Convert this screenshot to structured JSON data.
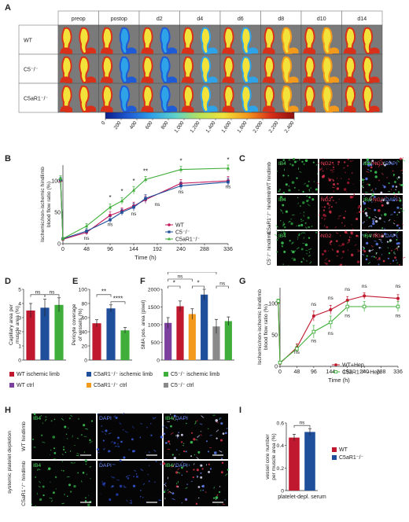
{
  "panels": {
    "A": "A",
    "B": "B",
    "C": "C",
    "D": "D",
    "E": "E",
    "F": "F",
    "G": "G",
    "H": "H",
    "I": "I"
  },
  "panelA": {
    "timepoints": [
      "preop",
      "postop",
      "d2",
      "d4",
      "d6",
      "d8",
      "d10",
      "d14"
    ],
    "rows": [
      "WT",
      "C5⁻/⁻",
      "C5aR1⁻/⁻"
    ],
    "colorbar_ticks": [
      "0",
      "200",
      "400",
      "600",
      "800",
      "1,000",
      "1,200",
      "1,400",
      "1,600",
      "1,800",
      "2,000",
      "2,200",
      "2,400"
    ],
    "colorbar_colors": [
      "#0b1f8a",
      "#1f5bd6",
      "#2fa3e8",
      "#5fd3c8",
      "#b8e35a",
      "#f2e23a",
      "#f39a1d",
      "#d9301a",
      "#8e1010"
    ]
  },
  "chart_data": [
    {
      "panel": "B",
      "type": "line",
      "xlabel": "Time (h)",
      "ylabel": "Ischemic/non-ischemic hindlimb blood flow ratio (%)",
      "x": [
        0,
        48,
        96,
        144,
        192,
        240,
        288,
        336
      ],
      "xlim": [
        0,
        336
      ],
      "ylim": [
        0,
        125
      ],
      "yticks": [
        0,
        50,
        100
      ],
      "xticks": [
        0,
        48,
        96,
        144,
        192,
        240,
        288,
        336
      ],
      "series": [
        {
          "name": "WT",
          "color": "#c2185b",
          "marker": "circle",
          "x": [
            -5,
            0,
            48,
            96,
            120,
            144,
            168,
            240,
            336
          ],
          "values": [
            100,
            7,
            18,
            45,
            52,
            60,
            70,
            96,
            100
          ],
          "err": [
            4,
            2,
            4,
            6,
            5,
            6,
            6,
            6,
            7
          ]
        },
        {
          "name": "C5⁻/⁻",
          "color": "#1f4e9a",
          "marker": "square",
          "x": [
            -5,
            0,
            48,
            96,
            120,
            144,
            168,
            240,
            336
          ],
          "values": [
            102,
            8,
            20,
            38,
            50,
            58,
            72,
            92,
            98
          ],
          "err": [
            4,
            2,
            4,
            5,
            5,
            6,
            6,
            6,
            6
          ]
        },
        {
          "name": "C5aR1⁻/⁻",
          "color": "#3fae3a",
          "marker": "triangle",
          "x": [
            -5,
            0,
            48,
            96,
            120,
            144,
            168,
            240,
            336
          ],
          "values": [
            104,
            8,
            28,
            58,
            68,
            85,
            102,
            118,
            120
          ],
          "err": [
            4,
            2,
            4,
            5,
            5,
            6,
            5,
            5,
            5
          ]
        }
      ],
      "annotations": [
        {
          "x": 96,
          "y": 70,
          "text": "*"
        },
        {
          "x": 120,
          "y": 80,
          "text": "*"
        },
        {
          "x": 144,
          "y": 96,
          "text": "*"
        },
        {
          "x": 168,
          "y": 112,
          "text": "**"
        },
        {
          "x": 240,
          "y": 128,
          "text": "*"
        },
        {
          "x": 336,
          "y": 130,
          "text": "*"
        },
        {
          "x": 48,
          "y": 6,
          "text": "ns"
        },
        {
          "x": 96,
          "y": 28,
          "text": "ns"
        },
        {
          "x": 144,
          "y": 45,
          "text": "ns"
        },
        {
          "x": 192,
          "y": 60,
          "text": "ns"
        },
        {
          "x": 240,
          "y": 80,
          "text": "ns"
        },
        {
          "x": 336,
          "y": 88,
          "text": "ns"
        }
      ]
    },
    {
      "panel": "D",
      "type": "bar",
      "ylabel": "Capillary area per muscle area (%)",
      "categories": [
        "WT ischemic limb",
        "C5aR1⁻/⁻ ischemic limb",
        "C5⁻/⁻ ischemic limb"
      ],
      "values": [
        3.5,
        3.7,
        3.9
      ],
      "err": [
        0.5,
        0.6,
        0.5
      ],
      "colors": [
        "#c0182e",
        "#1f4e9a",
        "#3fae3a"
      ],
      "ylim": [
        0,
        5
      ],
      "yticks": [
        0,
        1,
        2,
        3,
        4,
        5
      ],
      "brackets": [
        {
          "from": 0,
          "to": 1,
          "text": "ns"
        },
        {
          "from": 1,
          "to": 2,
          "text": "ns"
        }
      ]
    },
    {
      "panel": "E",
      "type": "bar",
      "ylabel": "Pericyte coverage of vessels (%)",
      "categories": [
        "WT ischemic limb",
        "C5aR1⁻/⁻ ischemic limb",
        "C5⁻/⁻ ischemic limb"
      ],
      "values": [
        52,
        73,
        42
      ],
      "err": [
        5,
        5,
        4
      ],
      "colors": [
        "#c0182e",
        "#1f4e9a",
        "#3fae3a"
      ],
      "ylim": [
        0,
        100
      ],
      "yticks": [
        0,
        20,
        40,
        60,
        80,
        100
      ],
      "brackets": [
        {
          "from": 0,
          "to": 1,
          "text": "**",
          "level": 2
        },
        {
          "from": 1,
          "to": 2,
          "text": "****",
          "level": 1
        }
      ]
    },
    {
      "panel": "F",
      "type": "bar",
      "ylabel": "SMA pos. area (pixel)",
      "categories": [
        "WT ctrl",
        "WT ischemic limb",
        "C5aR1⁻/⁻ ctrl",
        "C5aR1⁻/⁻ ischemic limb",
        "C5⁻/⁻ ctrl",
        "C5⁻/⁻ ischemic limb"
      ],
      "values": [
        1050,
        1520,
        1300,
        1850,
        950,
        1100
      ],
      "err": [
        150,
        150,
        150,
        150,
        200,
        120
      ],
      "colors": [
        "#7b3f9e",
        "#c0182e",
        "#f39a1d",
        "#1f4e9a",
        "#8a8a8a",
        "#3fae3a"
      ],
      "ylim": [
        0,
        2000
      ],
      "yticks": [
        0,
        500,
        1000,
        1500,
        2000
      ],
      "brackets": [
        {
          "from": 0,
          "to": 1,
          "text": "*",
          "level": 1
        },
        {
          "from": 2,
          "to": 3,
          "text": "*",
          "level": 1
        },
        {
          "from": 0,
          "to": 2,
          "text": "ns",
          "level": 2
        },
        {
          "from": 4,
          "to": 5,
          "text": "ns",
          "level": 1
        },
        {
          "from": 0,
          "to": 4,
          "text": "ns",
          "level": 3
        }
      ]
    },
    {
      "panel": "G",
      "type": "line",
      "xlabel": "Time (h)",
      "ylabel": "Ischemic/non-ischemic hindlimb blood flow ratio (%)",
      "xlim": [
        0,
        336
      ],
      "ylim": [
        0,
        125
      ],
      "yticks": [
        0,
        50,
        100
      ],
      "xticks": [
        0,
        48,
        96,
        144,
        192,
        240,
        288,
        336
      ],
      "series": [
        {
          "name": "WT+Hep.",
          "color": "#c0182e",
          "marker": "circle",
          "x": [
            -5,
            0,
            48,
            96,
            144,
            192,
            240,
            336
          ],
          "values": [
            103,
            5,
            30,
            80,
            90,
            105,
            112,
            108
          ],
          "err": [
            3,
            2,
            6,
            8,
            7,
            6,
            5,
            6
          ]
        },
        {
          "name": "C5aR1⁻/⁻+Hep.",
          "color": "#3fae3a",
          "marker": "square-open",
          "x": [
            -5,
            0,
            48,
            96,
            144,
            192,
            240,
            336
          ],
          "values": [
            104,
            6,
            28,
            55,
            70,
            95,
            95,
            95
          ],
          "err": [
            3,
            2,
            6,
            10,
            10,
            8,
            8,
            8
          ]
        }
      ],
      "annotations": [
        {
          "x": 48,
          "y": 20,
          "text": "ns"
        },
        {
          "x": 96,
          "y": 96,
          "text": "ns"
        },
        {
          "x": 96,
          "y": 38,
          "text": "ns"
        },
        {
          "x": 144,
          "y": 106,
          "text": "ns"
        },
        {
          "x": 144,
          "y": 50,
          "text": "ns"
        },
        {
          "x": 192,
          "y": 120,
          "text": "ns"
        },
        {
          "x": 192,
          "y": 78,
          "text": "ns"
        },
        {
          "x": 240,
          "y": 125,
          "text": "ns"
        },
        {
          "x": 336,
          "y": 125,
          "text": "ns"
        },
        {
          "x": 336,
          "y": 78,
          "text": "ns"
        }
      ]
    },
    {
      "panel": "I",
      "type": "bar",
      "ylabel": "vessel core number per muscle area (%)",
      "xlabel": "platelet-depl. serum",
      "categories": [
        "WT",
        "C5aR1⁻/⁻"
      ],
      "values": [
        0.47,
        0.52
      ],
      "err": [
        0.03,
        0.03
      ],
      "colors": [
        "#c0182e",
        "#1f4e9a"
      ],
      "ylim": [
        0,
        0.6
      ],
      "yticks": [
        0.0,
        0.2,
        0.4,
        0.6
      ],
      "brackets": [
        {
          "from": 0,
          "to": 1,
          "text": "ns"
        }
      ]
    }
  ],
  "panelC": {
    "rows": [
      "WT hindlimb",
      "C5aR1⁻/⁻ hindlimb",
      "C5⁻/⁻ hindlimb"
    ],
    "col1": "IB4",
    "col2": "NG2",
    "col3a": "IB4",
    "col3b": "NG2",
    "col3c": "DAPI"
  },
  "legendDEF": {
    "row1": [
      {
        "label": "WT ischemic limb",
        "color": "#c0182e"
      },
      {
        "label": "C5aR1⁻/⁻ ischemic limb",
        "color": "#1f4e9a"
      },
      {
        "label": "C5⁻/⁻ ischemic limb",
        "color": "#3fae3a"
      }
    ],
    "row2": [
      {
        "label": "WT ctrl",
        "color": "#7b3f9e"
      },
      {
        "label": "C5aR1⁻/⁻ ctrl",
        "color": "#f39a1d"
      },
      {
        "label": "C5⁻/⁻ ctrl",
        "color": "#8a8a8a"
      }
    ]
  },
  "panelH": {
    "side_label": "systemic platelet depletion",
    "rows": [
      "WT hindlimb",
      "C5aR1⁻/⁻ hindlimb"
    ],
    "col1": "IB4",
    "col2": "DAPI",
    "col3a": "IB4",
    "col3b": "DAPI"
  }
}
